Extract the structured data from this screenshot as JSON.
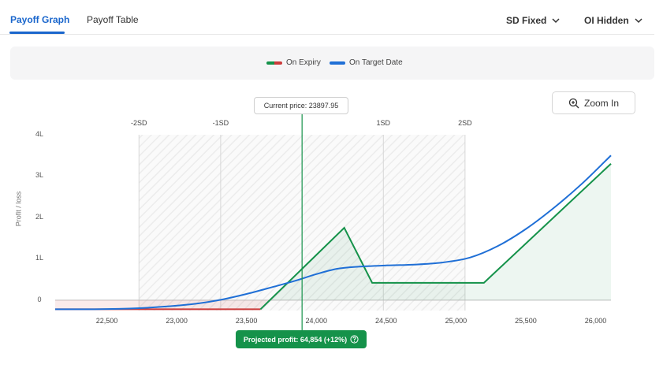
{
  "tabs": [
    {
      "label": "Payoff Graph",
      "active": true
    },
    {
      "label": "Payoff Table",
      "active": false
    }
  ],
  "dropdowns": {
    "sd_mode": "SD Fixed",
    "oi_mode": "OI Hidden"
  },
  "legend": [
    {
      "label": "On Expiry",
      "icon": "red-green-line"
    },
    {
      "label": "On Target Date",
      "icon": "blue-line"
    }
  ],
  "zoom_label": "Zoom In",
  "current_price_label": "Current price: 23897.95",
  "projected_profit_label": "Projected profit: 64,854 (+12%)",
  "colors": {
    "accent": "#1a66cc",
    "expiry_profit": "#15924a",
    "expiry_loss": "#cc3b3b",
    "target_date": "#1f6fd6"
  },
  "chart_data": {
    "type": "line",
    "ylabel": "Profit / loss",
    "x_ticks": [
      "22,500",
      "23,000",
      "23,500",
      "24,000",
      "24,500",
      "25,000",
      "25,500",
      "26,000"
    ],
    "x_tick_values": [
      22500,
      23000,
      23500,
      24000,
      24500,
      25000,
      25500,
      26000
    ],
    "y_ticks": [
      "0",
      "1L",
      "2L",
      "3L",
      "4L"
    ],
    "y_tick_values": [
      0,
      100000,
      200000,
      300000,
      400000
    ],
    "xlim": [
      22130,
      26110
    ],
    "ylim": [
      -25000,
      400000
    ],
    "current_price": 23897.95,
    "sd_levels": [
      {
        "label": "-2SD",
        "x": 22730
      },
      {
        "label": "-1SD",
        "x": 23315
      },
      {
        "label": "1SD",
        "x": 24480
      },
      {
        "label": "2SD",
        "x": 25065
      }
    ],
    "series": [
      {
        "name": "On Expiry",
        "x": [
          22130,
          23600,
          24200,
          24400,
          25200,
          26110
        ],
        "y": [
          -22000,
          -22000,
          175000,
          42000,
          42000,
          330000
        ]
      },
      {
        "name": "On Target Date",
        "x": [
          22130,
          22500,
          22800,
          23100,
          23300,
          23500,
          23700,
          23850,
          24000,
          24150,
          24300,
          24500,
          24700,
          24900,
          25100,
          25300,
          25500,
          25700,
          25900,
          26110
        ],
        "y": [
          -22000,
          -21500,
          -18000,
          -10000,
          0,
          15000,
          33000,
          47000,
          63000,
          76000,
          81000,
          84000,
          86000,
          91000,
          103000,
          131000,
          172000,
          223000,
          281000,
          350000
        ]
      }
    ]
  }
}
